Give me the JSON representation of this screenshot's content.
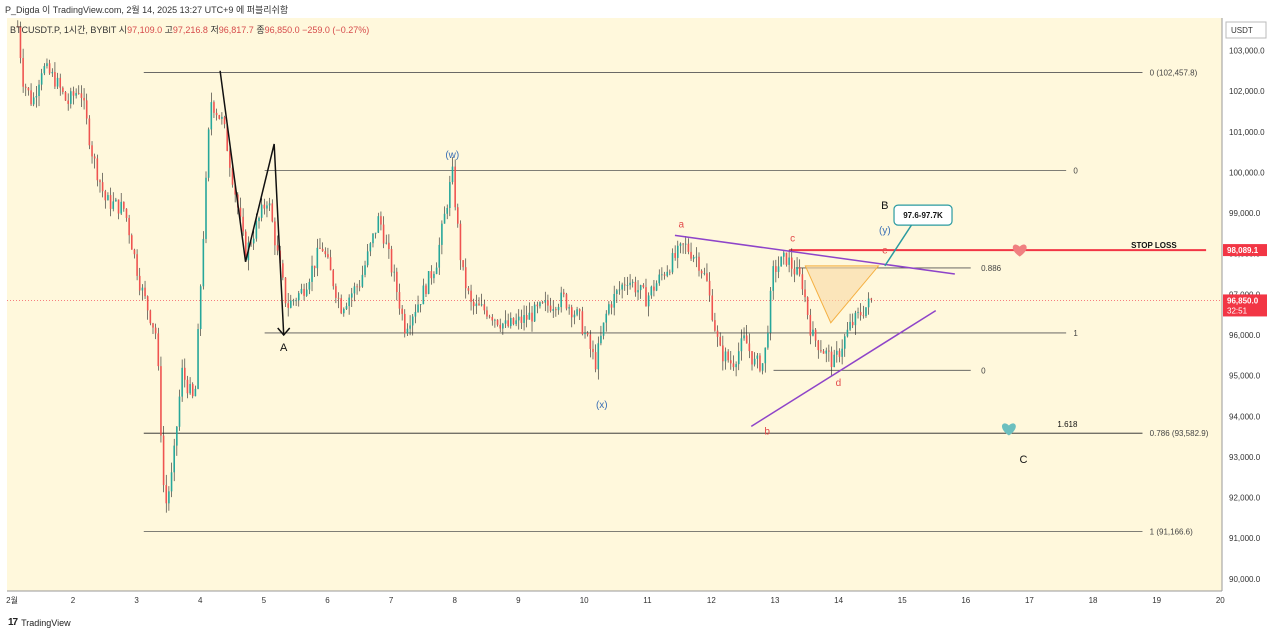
{
  "header": {
    "publish_line": "P_Digda 이 TradingView.com, 2월 14, 2025 13:27 UTC+9 에 퍼블리쉬함"
  },
  "legend": {
    "symbol": "BTCUSDT.P, 1시간, BYBIT",
    "open_label": "시",
    "open": "97,109.0",
    "high_label": "고",
    "high": "97,216.8",
    "low_label": "저",
    "low": "96,817.7",
    "close_label": "종",
    "close": "96,850.0",
    "change": "−259.0 (−0.27%)"
  },
  "footer": {
    "brand": "TradingView"
  },
  "chart_data": {
    "type": "candlestick",
    "currency": "USDT",
    "y_ticks": [
      90000,
      91000,
      92000,
      93000,
      94000,
      95000,
      96000,
      97000,
      98000,
      99000,
      100000,
      101000,
      102000,
      103000
    ],
    "y_tick_labels": [
      "90,000.0",
      "91,000.0",
      "92,000.0",
      "93,000.0",
      "94,000.0",
      "95,000.0",
      "96,000.0",
      "97,000.0",
      "98,000.0",
      "99,000.0",
      "100,000.0",
      "101,000.0",
      "102,000.0",
      "103,000.0"
    ],
    "x_ticks": [
      1,
      2,
      3,
      4,
      5,
      6,
      7,
      8,
      9,
      10,
      11,
      12,
      13,
      14,
      15,
      16,
      17,
      18,
      19,
      20
    ],
    "x_tick_labels": [
      "2월",
      "2",
      "3",
      "4",
      "5",
      "6",
      "7",
      "8",
      "9",
      "10",
      "11",
      "12",
      "13",
      "14",
      "15",
      "16",
      "17",
      "18",
      "19",
      "20"
    ],
    "ylim": [
      89700,
      103800
    ],
    "xlim": [
      0.95,
      20.05
    ],
    "price_path": [
      [
        1.12,
        103600
      ],
      [
        1.2,
        102300
      ],
      [
        1.35,
        101700
      ],
      [
        1.5,
        102600
      ],
      [
        1.7,
        102300
      ],
      [
        1.9,
        101700
      ],
      [
        2.1,
        102100
      ],
      [
        2.3,
        100400
      ],
      [
        2.5,
        99300
      ],
      [
        2.8,
        99100
      ],
      [
        3.05,
        97200
      ],
      [
        3.3,
        96000
      ],
      [
        3.43,
        91700
      ],
      [
        3.55,
        92600
      ],
      [
        3.7,
        95100
      ],
      [
        3.9,
        94300
      ],
      [
        4.0,
        97400
      ],
      [
        4.15,
        101800
      ],
      [
        4.35,
        101200
      ],
      [
        4.55,
        99400
      ],
      [
        4.7,
        98000
      ],
      [
        4.9,
        98800
      ],
      [
        5.05,
        99400
      ],
      [
        5.2,
        98000
      ],
      [
        5.35,
        96700
      ],
      [
        5.6,
        97100
      ],
      [
        5.9,
        98200
      ],
      [
        6.2,
        96700
      ],
      [
        6.5,
        97300
      ],
      [
        6.8,
        98900
      ],
      [
        7.05,
        97300
      ],
      [
        7.2,
        96200
      ],
      [
        7.45,
        96900
      ],
      [
        7.7,
        97800
      ],
      [
        7.85,
        99100
      ],
      [
        7.95,
        100000
      ],
      [
        8.1,
        97600
      ],
      [
        8.25,
        96700
      ],
      [
        8.5,
        96600
      ],
      [
        8.8,
        96200
      ],
      [
        9.1,
        96400
      ],
      [
        9.4,
        96700
      ],
      [
        9.7,
        96900
      ],
      [
        9.95,
        96400
      ],
      [
        10.2,
        95300
      ],
      [
        10.4,
        96700
      ],
      [
        10.7,
        97400
      ],
      [
        11.0,
        96900
      ],
      [
        11.3,
        97600
      ],
      [
        11.6,
        98200
      ],
      [
        11.8,
        97900
      ],
      [
        11.95,
        97300
      ],
      [
        12.15,
        95600
      ],
      [
        12.35,
        95300
      ],
      [
        12.55,
        95900
      ],
      [
        12.7,
        95300
      ],
      [
        12.85,
        95300
      ],
      [
        13.0,
        97600
      ],
      [
        13.2,
        97900
      ],
      [
        13.45,
        97300
      ],
      [
        13.6,
        96000
      ],
      [
        13.8,
        95600
      ],
      [
        13.95,
        95300
      ],
      [
        14.2,
        96200
      ],
      [
        14.4,
        96600
      ],
      [
        14.55,
        96850
      ]
    ],
    "dotted_last_price": 96850,
    "price_labels": [
      {
        "value": 98089.1,
        "text": "98,089.1",
        "color": "#f23645"
      },
      {
        "value": 96850.0,
        "text": "96,850.0",
        "subtext": "32:51",
        "color": "#f23645"
      }
    ],
    "horizontal_levels": [
      {
        "price": 102457.8,
        "x_from": 3.1,
        "x_to": 18.8,
        "label": "0 (102,457.8)",
        "label_x": 18.85,
        "color": "#555555"
      },
      {
        "price": 100050,
        "x_from": 5.0,
        "x_to": 17.6,
        "label": "0",
        "label_x": 17.65,
        "color": "#555555"
      },
      {
        "price": 96050,
        "x_from": 5.0,
        "x_to": 17.6,
        "label": "1",
        "label_x": 17.65,
        "color": "#555555"
      },
      {
        "price": 98089.1,
        "x_from": 13.25,
        "x_to": 19.8,
        "label": "",
        "color": "#f23645",
        "width": 2
      },
      {
        "price": 97650,
        "x_from": 13.35,
        "x_to": 16.1,
        "label": "0.886",
        "label_x": 16.2,
        "color": "#555555"
      },
      {
        "price": 95130,
        "x_from": 13.0,
        "x_to": 16.1,
        "label": "0",
        "label_x": 16.2,
        "color": "#555555"
      },
      {
        "price": 93582.9,
        "x_from": 3.1,
        "x_to": 18.8,
        "label": "0.786 (93,582.9)",
        "label_x": 18.85,
        "color": "#222222"
      },
      {
        "price": 91166.6,
        "x_from": 3.1,
        "x_to": 18.8,
        "label": "1 (91,166.6)",
        "label_x": 18.85,
        "color": "#555555"
      }
    ],
    "segment_lines": [
      {
        "points": [
          [
            11.45,
            98450
          ],
          [
            15.85,
            97500
          ]
        ],
        "color": "#8e44c9",
        "width": 1.5
      },
      {
        "points": [
          [
            12.65,
            93750
          ],
          [
            15.55,
            96600
          ]
        ],
        "color": "#8e44c9",
        "width": 1.5
      },
      {
        "points": [
          [
            4.3,
            102500
          ],
          [
            4.7,
            97800
          ],
          [
            5.15,
            100700
          ],
          [
            5.3,
            96000
          ]
        ],
        "color": "#111111",
        "width": 1.5
      },
      {
        "points": [
          [
            13.5,
            97700
          ],
          [
            13.9,
            96300
          ],
          [
            14.65,
            97700
          ]
        ],
        "color": "#f5b041",
        "width": 1,
        "fill": "#f9d9a3"
      },
      {
        "points": [
          [
            14.75,
            97700
          ],
          [
            15.25,
            98900
          ]
        ],
        "color": "#2a9aa0",
        "width": 1.5
      }
    ],
    "annotations": [
      {
        "x": 5.3,
        "y": 95600,
        "text": "A",
        "color": "#111111",
        "size": 11
      },
      {
        "x": 7.95,
        "y": 100350,
        "text": "(w)",
        "color": "#3a6fb5",
        "size": 10
      },
      {
        "x": 10.3,
        "y": 94200,
        "text": "(x)",
        "color": "#3a6fb5",
        "size": 10
      },
      {
        "x": 11.55,
        "y": 98650,
        "text": "a",
        "color": "#e34a4a",
        "size": 10
      },
      {
        "x": 12.9,
        "y": 93550,
        "text": "b",
        "color": "#e34a4a",
        "size": 10
      },
      {
        "x": 13.3,
        "y": 98300,
        "text": "c",
        "color": "#e34a4a",
        "size": 10
      },
      {
        "x": 14.02,
        "y": 94750,
        "text": "d",
        "color": "#e34a4a",
        "size": 10
      },
      {
        "x": 14.75,
        "y": 98000,
        "text": "e",
        "color": "#e34a4a",
        "size": 10
      },
      {
        "x": 14.75,
        "y": 98500,
        "text": "(y)",
        "color": "#3a6fb5",
        "size": 10
      },
      {
        "x": 14.75,
        "y": 99100,
        "text": "B",
        "color": "#111111",
        "size": 11
      },
      {
        "x": 16.93,
        "y": 92850,
        "text": "C",
        "color": "#111111",
        "size": 11
      },
      {
        "x": 17.62,
        "y": 93740,
        "text": "1.618",
        "color": "#111111",
        "size": 8
      },
      {
        "x": 18.98,
        "y": 98140,
        "text": "STOP LOSS",
        "color": "#111111",
        "size": 8,
        "bold": true
      }
    ],
    "callout": {
      "x": 15.35,
      "y": 98950,
      "text": "97.6-97.7K",
      "border": "#2a9aa0"
    },
    "hearts": [
      {
        "x": 16.87,
        "y": 98100,
        "color": "#f08080"
      },
      {
        "x": 16.7,
        "y": 93700,
        "color": "#6bbfbf"
      }
    ],
    "colors": {
      "plot_bg": "#fff8dc",
      "bull": "#26a69a",
      "bear": "#ef5350",
      "wick": "#222222"
    }
  }
}
